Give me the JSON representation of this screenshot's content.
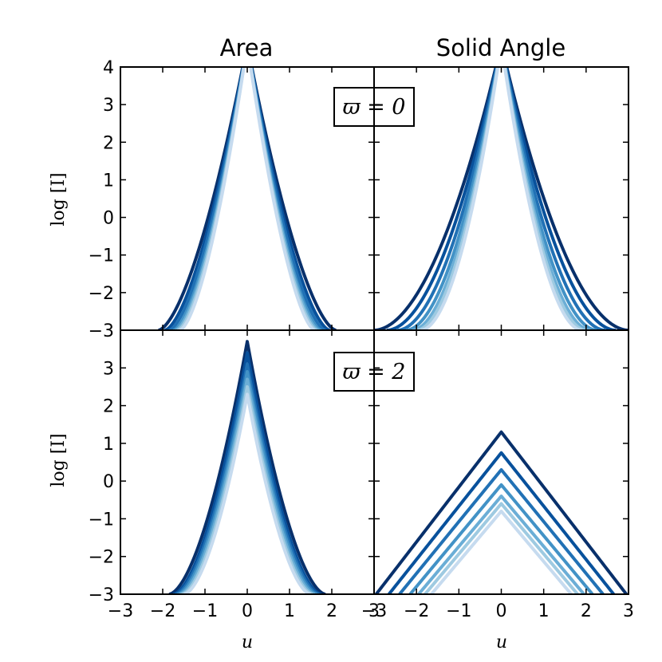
{
  "figure": {
    "col_titles": [
      "Area",
      "Solid Angle"
    ],
    "xlabel": "u",
    "ylabel": "log [I]"
  },
  "colors": [
    "#08306b",
    "#08519c",
    "#2171b5",
    "#4292c6",
    "#6baed6",
    "#9ecae1",
    "#c6dbef"
  ],
  "chart_data": [
    {
      "type": "line",
      "panel": "top-left",
      "column_title": "Area",
      "annotation": "ϖ = 0",
      "xlim": [
        -3,
        3
      ],
      "ylim": [
        -3,
        4
      ],
      "xticks": [
        -3,
        -2,
        -1,
        0,
        1,
        2,
        3
      ],
      "yticks": [
        -3,
        -2,
        -1,
        0,
        1,
        2,
        3,
        4
      ],
      "series": [
        {
          "peak": 4.6,
          "left_u": -2.1,
          "right_u": 2.1,
          "shape": 1.6
        },
        {
          "peak": 4.6,
          "left_u": -1.95,
          "right_u": 1.95,
          "shape": 1.6
        },
        {
          "peak": 4.6,
          "left_u": -1.85,
          "right_u": 1.85,
          "shape": 1.6
        },
        {
          "peak": 4.6,
          "left_u": -1.75,
          "right_u": 1.75,
          "shape": 1.6
        },
        {
          "peak": 4.6,
          "left_u": -1.7,
          "right_u": 1.7,
          "shape": 1.6
        },
        {
          "peak": 4.6,
          "left_u": -1.65,
          "right_u": 1.65,
          "shape": 1.6
        },
        {
          "peak": 4.6,
          "left_u": -1.6,
          "right_u": 1.6,
          "shape": 1.6
        }
      ]
    },
    {
      "type": "line",
      "panel": "top-right",
      "column_title": "Solid Angle",
      "xlim": [
        -3,
        3
      ],
      "ylim": [
        -3,
        4
      ],
      "xticks": [
        -3,
        -2,
        -1,
        0,
        1,
        2,
        3
      ],
      "yticks": [
        -3,
        -2,
        -1,
        0,
        1,
        2,
        3,
        4
      ],
      "series": [
        {
          "peak": 4.6,
          "left_u": -3.0,
          "right_u": 3.0,
          "shape": 1.9
        },
        {
          "peak": 4.6,
          "left_u": -2.7,
          "right_u": 2.7,
          "shape": 1.9
        },
        {
          "peak": 4.6,
          "left_u": -2.45,
          "right_u": 2.45,
          "shape": 1.9
        },
        {
          "peak": 4.6,
          "left_u": -2.25,
          "right_u": 2.25,
          "shape": 1.9
        },
        {
          "peak": 4.6,
          "left_u": -2.1,
          "right_u": 2.1,
          "shape": 1.9
        },
        {
          "peak": 4.6,
          "left_u": -2.0,
          "right_u": 2.0,
          "shape": 1.9
        },
        {
          "peak": 4.6,
          "left_u": -1.9,
          "right_u": 1.9,
          "shape": 1.9
        }
      ]
    },
    {
      "type": "line",
      "panel": "bottom-left",
      "annotation": "ϖ = 2",
      "xlim": [
        -3,
        3
      ],
      "ylim": [
        -3,
        4
      ],
      "xticks": [
        -3,
        -2,
        -1,
        0,
        1,
        2,
        3
      ],
      "yticks": [
        -3,
        -2,
        -1,
        0,
        1,
        2,
        3
      ],
      "series": [
        {
          "peak": 3.7,
          "left_u": -1.85,
          "right_u": 1.85,
          "shape": 1.7
        },
        {
          "peak": 3.4,
          "left_u": -1.75,
          "right_u": 1.75,
          "shape": 1.7
        },
        {
          "peak": 3.1,
          "left_u": -1.7,
          "right_u": 1.7,
          "shape": 1.7
        },
        {
          "peak": 2.9,
          "left_u": -1.65,
          "right_u": 1.65,
          "shape": 1.7
        },
        {
          "peak": 2.7,
          "left_u": -1.6,
          "right_u": 1.6,
          "shape": 1.7
        },
        {
          "peak": 2.5,
          "left_u": -1.55,
          "right_u": 1.55,
          "shape": 1.7
        },
        {
          "peak": 2.3,
          "left_u": -1.5,
          "right_u": 1.5,
          "shape": 1.7
        }
      ]
    },
    {
      "type": "line",
      "panel": "bottom-right",
      "xlim": [
        -3,
        3
      ],
      "ylim": [
        -3,
        4
      ],
      "xticks": [
        -3,
        -2,
        -1,
        0,
        1,
        2,
        3
      ],
      "yticks": [
        -3,
        -2,
        -1,
        0,
        1,
        2,
        3
      ],
      "series": [
        {
          "peak": 1.3,
          "left_u": -2.95,
          "right_u": 2.95,
          "shape": 1.0
        },
        {
          "peak": 0.75,
          "left_u": -2.65,
          "right_u": 2.65,
          "shape": 1.0
        },
        {
          "peak": 0.3,
          "left_u": -2.4,
          "right_u": 2.4,
          "shape": 1.0
        },
        {
          "peak": -0.1,
          "left_u": -2.15,
          "right_u": 2.15,
          "shape": 1.0
        },
        {
          "peak": -0.4,
          "left_u": -1.95,
          "right_u": 1.95,
          "shape": 1.0
        },
        {
          "peak": -0.6,
          "left_u": -1.8,
          "right_u": 1.8,
          "shape": 1.0
        },
        {
          "peak": -0.8,
          "left_u": -1.65,
          "right_u": 1.65,
          "shape": 1.0
        }
      ]
    }
  ]
}
